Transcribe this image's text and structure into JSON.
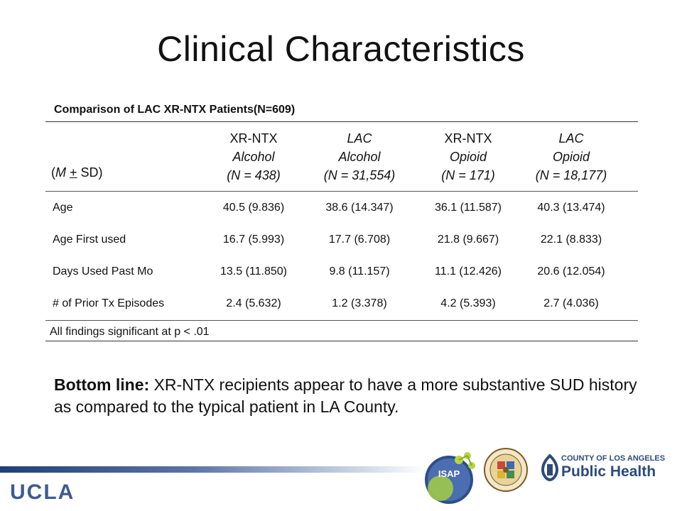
{
  "slide": {
    "title": "Clinical Characteristics",
    "table_caption": "Comparison of LAC XR-NTX Patients(N=609)",
    "stat_label": {
      "pre": "(",
      "m": "M",
      "plus": "+",
      "post": " SD)"
    },
    "columns": [
      {
        "line1": "XR-NTX",
        "line2": "Alcohol",
        "line3": "(N = 438)"
      },
      {
        "line1": "LAC",
        "line2": "Alcohol",
        "line3": "(N = 31,554)"
      },
      {
        "line1": "XR-NTX",
        "line2": "Opioid",
        "line3": "(N = 171)"
      },
      {
        "line1": "LAC",
        "line2": "Opioid",
        "line3": "(N = 18,177)"
      }
    ],
    "rows": [
      {
        "label": "Age",
        "values": [
          "40.5 (9.836)",
          "38.6 (14.347)",
          "36.1 (11.587)",
          "40.3 (13.474)"
        ]
      },
      {
        "label": "Age First used",
        "values": [
          "16.7 (5.993)",
          "17.7 (6.708)",
          "21.8 (9.667)",
          "22.1 (8.833)"
        ]
      },
      {
        "label": "Days Used Past Mo",
        "values": [
          "13.5 (11.850)",
          "9.8 (11.157)",
          "11.1 (12.426)",
          "20.6 (12.054)"
        ]
      },
      {
        "label": "# of Prior Tx Episodes",
        "values": [
          "2.4 (5.632)",
          "1.2 (3.378)",
          "4.2 (5.393)",
          "2.7 (4.036)"
        ]
      }
    ],
    "footnote": "All findings significant at p < .01",
    "bottom_line": {
      "lead": "Bottom line:",
      "text": " XR-NTX recipients appear to have a more substantive SUD history as compared to the typical patient in LA County."
    }
  },
  "footer": {
    "ucla_logo": "UCLA",
    "isap_logo": "ISAP",
    "public_health": {
      "county": "COUNTY OF LOS ANGELES",
      "name": "Public Health"
    },
    "colors": {
      "accent": "#3d5a93",
      "ph_blue": "#2c4a7c"
    }
  }
}
